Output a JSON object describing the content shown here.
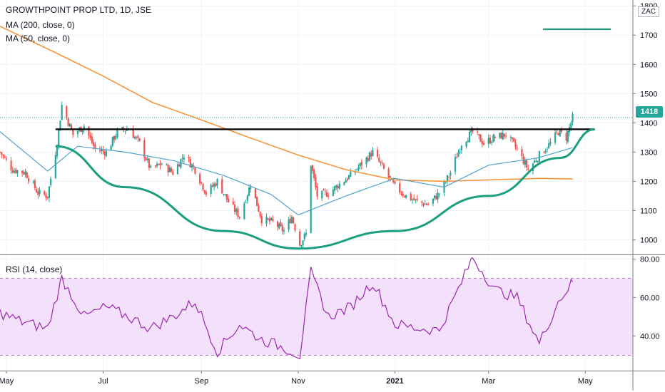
{
  "header": {
    "symbol_line": "GROWTHPOINT PROP LTD, 1D, JSE",
    "ma200_label": "MA (200, close, 0)",
    "ma50_label": "MA (50, close, 0)",
    "rsi_label": "RSI (14, close)"
  },
  "price_axis": {
    "unit": "ZAC",
    "last_price_label": "1418",
    "tick_labels": [
      "1800",
      "1700",
      "1600",
      "1500",
      "1400",
      "1300",
      "1200",
      "1100",
      "1000"
    ]
  },
  "rsi_axis": {
    "tick_labels": [
      "80.00",
      "60.00",
      "40.00"
    ]
  },
  "time_axis": {
    "labels": [
      "May",
      "Jul",
      "Sep",
      "Nov",
      "2021",
      "Mar",
      "May"
    ]
  },
  "colors": {
    "up": "#26a69a",
    "down": "#ef5350",
    "ma200": "#f7953d",
    "ma50": "#4fa3c7",
    "rsi": "#9c27b0",
    "rsi_band": "#f3e0fb",
    "pattern": "#1a9e7e",
    "resistance": "#000000",
    "last_price": "#26a69a"
  },
  "chart_data": [
    {
      "type": "candlestick",
      "title": "GROWTHPOINT PROP LTD, 1D, JSE",
      "unit": "ZAC",
      "ylim": [
        950,
        1820
      ],
      "x_range": [
        "2020-04-27",
        "2021-05-31"
      ],
      "last_price": 1418,
      "close_path": [
        [
          "2020-04-27",
          1300
        ],
        [
          "2020-05-05",
          1240
        ],
        [
          "2020-05-13",
          1230
        ],
        [
          "2020-05-21",
          1160
        ],
        [
          "2020-05-27",
          1150
        ],
        [
          "2020-06-02",
          1330
        ],
        [
          "2020-06-05",
          1460
        ],
        [
          "2020-06-12",
          1360
        ],
        [
          "2020-06-19",
          1390
        ],
        [
          "2020-06-26",
          1310
        ],
        [
          "2020-07-03",
          1300
        ],
        [
          "2020-07-10",
          1370
        ],
        [
          "2020-07-17",
          1380
        ],
        [
          "2020-07-24",
          1330
        ],
        [
          "2020-07-31",
          1240
        ],
        [
          "2020-08-07",
          1260
        ],
        [
          "2020-08-14",
          1230
        ],
        [
          "2020-08-21",
          1290
        ],
        [
          "2020-08-28",
          1240
        ],
        [
          "2020-09-04",
          1160
        ],
        [
          "2020-09-11",
          1200
        ],
        [
          "2020-09-18",
          1130
        ],
        [
          "2020-09-25",
          1080
        ],
        [
          "2020-10-02",
          1190
        ],
        [
          "2020-10-09",
          1070
        ],
        [
          "2020-10-16",
          1060
        ],
        [
          "2020-10-23",
          1030
        ],
        [
          "2020-10-28",
          1080
        ],
        [
          "2020-11-02",
          985
        ],
        [
          "2020-11-06",
          1020
        ],
        [
          "2020-11-09",
          1260
        ],
        [
          "2020-11-13",
          1150
        ],
        [
          "2020-11-20",
          1160
        ],
        [
          "2020-11-27",
          1190
        ],
        [
          "2020-12-04",
          1220
        ],
        [
          "2020-12-11",
          1260
        ],
        [
          "2020-12-18",
          1300
        ],
        [
          "2020-12-25",
          1240
        ],
        [
          "2021-01-01",
          1180
        ],
        [
          "2021-01-08",
          1150
        ],
        [
          "2021-01-15",
          1130
        ],
        [
          "2021-01-22",
          1120
        ],
        [
          "2021-01-29",
          1160
        ],
        [
          "2021-02-05",
          1230
        ],
        [
          "2021-02-12",
          1330
        ],
        [
          "2021-02-19",
          1370
        ],
        [
          "2021-02-26",
          1330
        ],
        [
          "2021-03-05",
          1350
        ],
        [
          "2021-03-12",
          1360
        ],
        [
          "2021-03-19",
          1310
        ],
        [
          "2021-03-26",
          1240
        ],
        [
          "2021-04-02",
          1290
        ],
        [
          "2021-04-09",
          1330
        ],
        [
          "2021-04-14",
          1370
        ],
        [
          "2021-04-19",
          1350
        ],
        [
          "2021-04-23",
          1418
        ]
      ],
      "series": [
        {
          "name": "MA (200, close, 0)",
          "values": [
            [
              "2020-04-27",
              1730
            ],
            [
              "2020-06-01",
              1640
            ],
            [
              "2020-07-01",
              1560
            ],
            [
              "2020-08-01",
              1470
            ],
            [
              "2020-09-01",
              1410
            ],
            [
              "2020-10-01",
              1350
            ],
            [
              "2020-11-01",
              1290
            ],
            [
              "2020-12-01",
              1240
            ],
            [
              "2021-01-01",
              1205
            ],
            [
              "2021-02-01",
              1200
            ],
            [
              "2021-03-01",
              1205
            ],
            [
              "2021-04-01",
              1210
            ],
            [
              "2021-04-23",
              1208
            ]
          ]
        },
        {
          "name": "MA (50, close, 0)",
          "values": [
            [
              "2020-04-27",
              1370
            ],
            [
              "2020-05-27",
              1235
            ],
            [
              "2020-06-15",
              1320
            ],
            [
              "2020-07-15",
              1300
            ],
            [
              "2020-08-15",
              1270
            ],
            [
              "2020-09-15",
              1220
            ],
            [
              "2020-10-15",
              1155
            ],
            [
              "2020-11-01",
              1085
            ],
            [
              "2020-12-01",
              1150
            ],
            [
              "2021-01-01",
              1210
            ],
            [
              "2021-02-01",
              1180
            ],
            [
              "2021-03-01",
              1255
            ],
            [
              "2021-04-01",
              1280
            ],
            [
              "2021-04-23",
              1315
            ]
          ]
        }
      ],
      "annotations": {
        "resistance_line": {
          "from": "2020-06-01",
          "to": "2021-05-07",
          "value": 1378
        },
        "cup_curve": [
          [
            "2020-06-01",
            1320
          ],
          [
            "2020-07-15",
            1180
          ],
          [
            "2020-09-15",
            1030
          ],
          [
            "2020-11-01",
            970
          ],
          [
            "2021-01-01",
            1030
          ],
          [
            "2021-03-01",
            1150
          ],
          [
            "2021-04-15",
            1280
          ],
          [
            "2021-05-07",
            1378
          ]
        ]
      }
    },
    {
      "type": "line",
      "name": "RSI (14, close)",
      "ylim": [
        22,
        82
      ],
      "band": [
        30,
        70
      ],
      "values": [
        [
          "2020-04-27",
          52
        ],
        [
          "2020-05-12",
          47
        ],
        [
          "2020-05-27",
          44
        ],
        [
          "2020-06-05",
          70
        ],
        [
          "2020-06-19",
          50
        ],
        [
          "2020-07-03",
          55
        ],
        [
          "2020-07-17",
          50
        ],
        [
          "2020-07-31",
          44
        ],
        [
          "2020-08-14",
          50
        ],
        [
          "2020-08-28",
          58
        ],
        [
          "2020-09-11",
          32
        ],
        [
          "2020-09-25",
          46
        ],
        [
          "2020-10-09",
          38
        ],
        [
          "2020-10-23",
          34
        ],
        [
          "2020-11-02",
          30
        ],
        [
          "2020-11-09",
          73
        ],
        [
          "2020-11-20",
          50
        ],
        [
          "2020-12-04",
          55
        ],
        [
          "2020-12-18",
          68
        ],
        [
          "2021-01-01",
          46
        ],
        [
          "2021-01-15",
          44
        ],
        [
          "2021-01-29",
          43
        ],
        [
          "2021-02-12",
          68
        ],
        [
          "2021-02-19",
          81
        ],
        [
          "2021-03-05",
          64
        ],
        [
          "2021-03-19",
          60
        ],
        [
          "2021-04-02",
          36
        ],
        [
          "2021-04-14",
          58
        ],
        [
          "2021-04-23",
          68
        ]
      ]
    }
  ]
}
